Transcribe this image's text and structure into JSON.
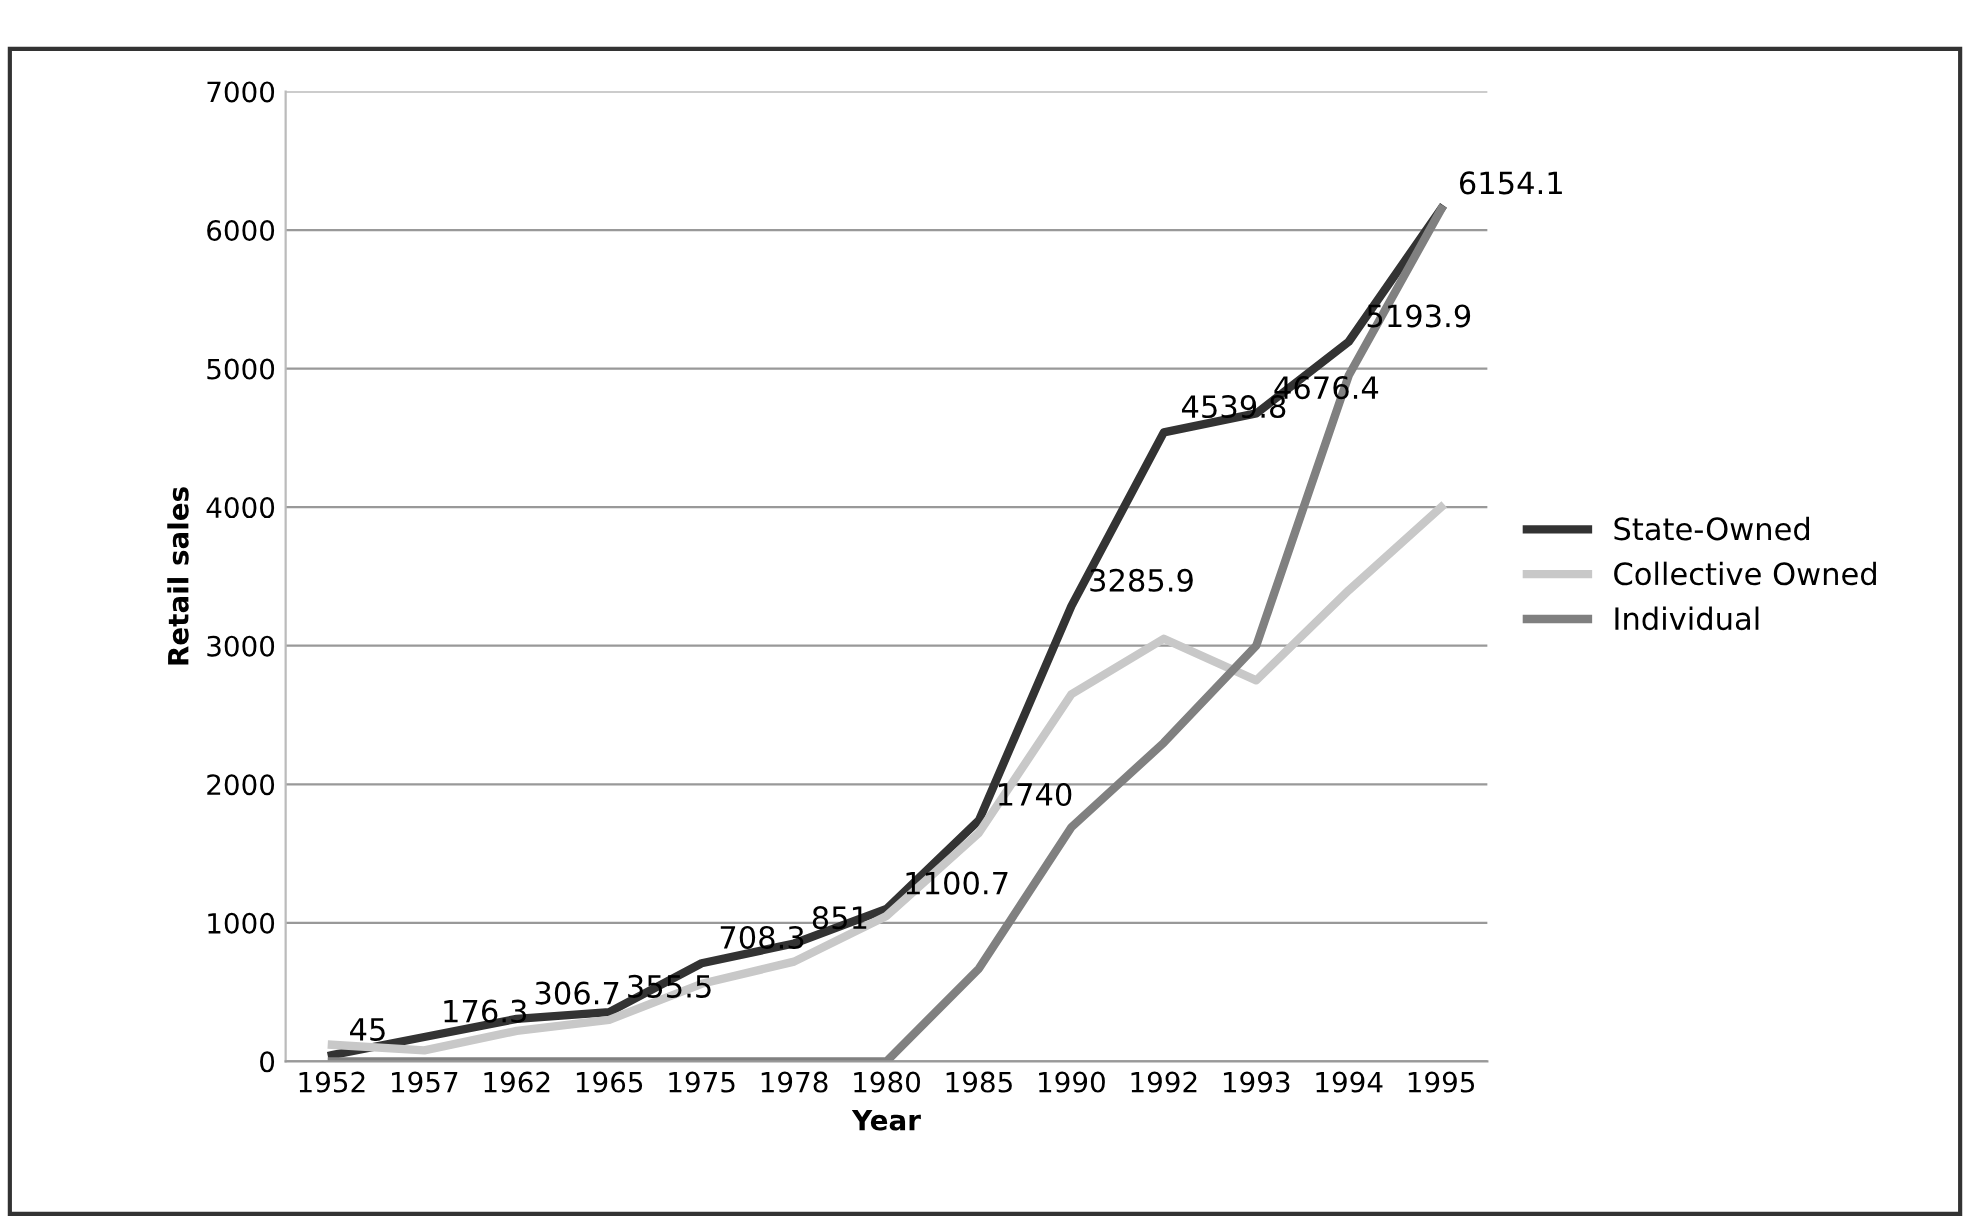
{
  "chart_data": {
    "type": "line",
    "xlabel": "Year",
    "ylabel": "Retail sales",
    "categories": [
      "1952",
      "1957",
      "1962",
      "1965",
      "1975",
      "1978",
      "1980",
      "1985",
      "1990",
      "1992",
      "1993",
      "1994",
      "1995"
    ],
    "series": [
      {
        "name": "State-Owned",
        "color": "#333333",
        "values": [
          45,
          176.3,
          306.7,
          355.5,
          708.3,
          851,
          1100.7,
          1740,
          3285.9,
          4539.8,
          4676.4,
          5193.9,
          6154.1
        ],
        "value_labels": [
          "45",
          "176.3",
          "306.7",
          "355.5",
          "708.3",
          "851",
          "1100.7",
          "1740",
          "3285.9",
          "4539.8",
          "4676.4",
          "5193.9",
          "6154.1"
        ]
      },
      {
        "name": "Collective Owned",
        "color": "#c8c8c8",
        "values": [
          120,
          80,
          220,
          300,
          560,
          720,
          1050,
          1650,
          2650,
          3050,
          2750,
          3400,
          4000
        ]
      },
      {
        "name": "Individual",
        "color": "#808080",
        "values": [
          0,
          0,
          0,
          0,
          0,
          0,
          0,
          670,
          1690,
          2300,
          3000,
          4950,
          6150
        ]
      }
    ],
    "ylim": [
      0,
      7000
    ],
    "yticks": [
      0,
      1000,
      2000,
      3000,
      4000,
      5000,
      6000,
      7000
    ],
    "grid": "y",
    "legend": "right",
    "marker": "none",
    "line_style": "solid"
  }
}
